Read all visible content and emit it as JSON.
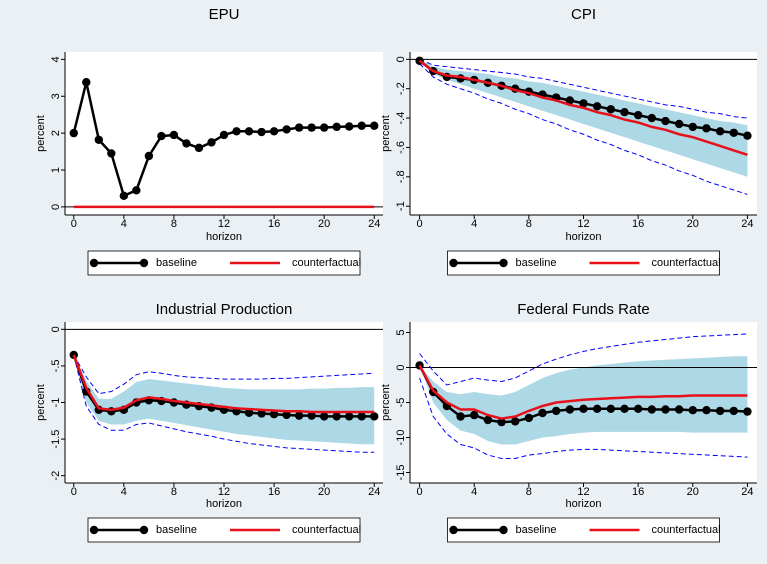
{
  "chart_data": [
    {
      "type": "line",
      "title": "EPU",
      "xlabel": "horizon",
      "ylabel": "percent",
      "x": [
        0,
        1,
        2,
        3,
        4,
        5,
        6,
        7,
        8,
        9,
        10,
        11,
        12,
        13,
        14,
        15,
        16,
        17,
        18,
        19,
        20,
        21,
        22,
        23,
        24
      ],
      "xlim": [
        -0.7,
        24.7
      ],
      "xticks": [
        0,
        4,
        8,
        12,
        16,
        20,
        24
      ],
      "ylim": [
        -0.22,
        4.2
      ],
      "yticks": [
        0,
        1,
        2,
        3,
        4
      ],
      "zero_line": true,
      "ci": {
        "color": "#0000ff",
        "lower": [
          0,
          0,
          0,
          0,
          0,
          0,
          0,
          0,
          0,
          0,
          0,
          0,
          0,
          0,
          0,
          0,
          0,
          0,
          0,
          0,
          0,
          0,
          0,
          0,
          0
        ],
        "upper": [
          0,
          0,
          0,
          0,
          0,
          0,
          0,
          0,
          0,
          0,
          0,
          0,
          0,
          0,
          0,
          0,
          0,
          0,
          0,
          0,
          0,
          0,
          0,
          0,
          0
        ]
      },
      "series": [
        {
          "name": "baseline",
          "color": "#000000",
          "marker": true,
          "values": [
            2.0,
            3.38,
            1.82,
            1.45,
            0.3,
            0.45,
            1.38,
            1.92,
            1.95,
            1.72,
            1.6,
            1.75,
            1.95,
            2.05,
            2.05,
            2.03,
            2.05,
            2.1,
            2.15,
            2.15,
            2.15,
            2.17,
            2.18,
            2.2,
            2.2
          ]
        },
        {
          "name": "counterfactual",
          "color": "#e8101a",
          "marker": false,
          "values": [
            0,
            0,
            0,
            0,
            0,
            0,
            0,
            0,
            0,
            0,
            0,
            0,
            0,
            0,
            0,
            0,
            0,
            0,
            0,
            0,
            0,
            0,
            0,
            0,
            0
          ]
        }
      ]
    },
    {
      "type": "line",
      "title": "CPI",
      "xlabel": "horizon",
      "ylabel": "percent",
      "x": [
        0,
        1,
        2,
        3,
        4,
        5,
        6,
        7,
        8,
        9,
        10,
        11,
        12,
        13,
        14,
        15,
        16,
        17,
        18,
        19,
        20,
        21,
        22,
        23,
        24
      ],
      "xlim": [
        -0.7,
        24.7
      ],
      "xticks": [
        0,
        4,
        8,
        12,
        16,
        20,
        24
      ],
      "ylim": [
        -1.06,
        0.05
      ],
      "yticks": [
        {
          "value": -1,
          "label": "-1"
        },
        {
          "value": -0.8,
          "label": "-.8"
        },
        {
          "value": -0.6,
          "label": "-.6"
        },
        {
          "value": -0.4,
          "label": "-.4"
        },
        {
          "value": -0.2,
          "label": "-.2"
        },
        0
      ],
      "zero_line": true,
      "band": {
        "color": "#add8e6",
        "lower": [
          -0.02,
          -0.1,
          -0.14,
          -0.17,
          -0.2,
          -0.23,
          -0.26,
          -0.29,
          -0.32,
          -0.35,
          -0.38,
          -0.41,
          -0.44,
          -0.47,
          -0.5,
          -0.53,
          -0.56,
          -0.59,
          -0.62,
          -0.65,
          -0.68,
          -0.71,
          -0.74,
          -0.77,
          -0.8
        ],
        "upper": [
          0,
          -0.05,
          -0.07,
          -0.08,
          -0.09,
          -0.1,
          -0.12,
          -0.13,
          -0.15,
          -0.16,
          -0.18,
          -0.2,
          -0.22,
          -0.24,
          -0.26,
          -0.28,
          -0.3,
          -0.32,
          -0.34,
          -0.36,
          -0.38,
          -0.4,
          -0.42,
          -0.43,
          -0.45
        ]
      },
      "ci": {
        "color": "#0000ff",
        "lower": [
          -0.03,
          -0.12,
          -0.17,
          -0.2,
          -0.23,
          -0.27,
          -0.3,
          -0.34,
          -0.37,
          -0.41,
          -0.44,
          -0.48,
          -0.51,
          -0.55,
          -0.58,
          -0.62,
          -0.65,
          -0.69,
          -0.72,
          -0.76,
          -0.79,
          -0.83,
          -0.86,
          -0.89,
          -0.92
        ],
        "upper": [
          0,
          -0.04,
          -0.05,
          -0.06,
          -0.07,
          -0.08,
          -0.09,
          -0.1,
          -0.12,
          -0.13,
          -0.15,
          -0.17,
          -0.19,
          -0.21,
          -0.23,
          -0.25,
          -0.27,
          -0.29,
          -0.31,
          -0.32,
          -0.34,
          -0.36,
          -0.37,
          -0.39,
          -0.4
        ]
      },
      "series": [
        {
          "name": "baseline",
          "color": "#000000",
          "marker": true,
          "values": [
            -0.01,
            -0.08,
            -0.12,
            -0.13,
            -0.14,
            -0.16,
            -0.18,
            -0.2,
            -0.22,
            -0.24,
            -0.26,
            -0.28,
            -0.3,
            -0.32,
            -0.34,
            -0.36,
            -0.38,
            -0.4,
            -0.42,
            -0.44,
            -0.46,
            -0.47,
            -0.49,
            -0.5,
            -0.52
          ]
        },
        {
          "name": "counterfactual",
          "color": "#e8101a",
          "marker": false,
          "values": [
            -0.01,
            -0.08,
            -0.11,
            -0.12,
            -0.14,
            -0.16,
            -0.18,
            -0.21,
            -0.23,
            -0.26,
            -0.28,
            -0.31,
            -0.33,
            -0.36,
            -0.38,
            -0.41,
            -0.43,
            -0.46,
            -0.48,
            -0.51,
            -0.53,
            -0.56,
            -0.59,
            -0.62,
            -0.65
          ]
        }
      ]
    },
    {
      "type": "line",
      "title": "Industrial Production",
      "xlabel": "horizon",
      "ylabel": "percent",
      "x": [
        0,
        1,
        2,
        3,
        4,
        5,
        6,
        7,
        8,
        9,
        10,
        11,
        12,
        13,
        14,
        15,
        16,
        17,
        18,
        19,
        20,
        21,
        22,
        23,
        24
      ],
      "xlim": [
        -0.7,
        24.7
      ],
      "xticks": [
        0,
        4,
        8,
        12,
        16,
        20,
        24
      ],
      "ylim": [
        -2.1,
        0.1
      ],
      "yticks": [
        -2,
        {
          "value": -1.5,
          "label": "-1.5"
        },
        -1,
        {
          "value": -0.5,
          "label": "-.5"
        },
        0
      ],
      "zero_line": true,
      "band": {
        "color": "#add8e6",
        "lower": [
          -0.35,
          -1.0,
          -1.25,
          -1.3,
          -1.3,
          -1.25,
          -1.22,
          -1.25,
          -1.28,
          -1.31,
          -1.34,
          -1.37,
          -1.4,
          -1.43,
          -1.45,
          -1.47,
          -1.49,
          -1.51,
          -1.52,
          -1.53,
          -1.54,
          -1.55,
          -1.56,
          -1.57,
          -1.57
        ],
        "upper": [
          -0.35,
          -0.7,
          -0.95,
          -0.95,
          -0.85,
          -0.72,
          -0.68,
          -0.7,
          -0.72,
          -0.74,
          -0.76,
          -0.78,
          -0.8,
          -0.81,
          -0.82,
          -0.82,
          -0.82,
          -0.82,
          -0.82,
          -0.81,
          -0.81,
          -0.8,
          -0.8,
          -0.79,
          -0.79
        ]
      },
      "ci": {
        "color": "#0000ff",
        "lower": [
          -0.35,
          -1.05,
          -1.3,
          -1.38,
          -1.38,
          -1.3,
          -1.28,
          -1.32,
          -1.36,
          -1.4,
          -1.43,
          -1.46,
          -1.5,
          -1.53,
          -1.56,
          -1.58,
          -1.6,
          -1.62,
          -1.63,
          -1.64,
          -1.65,
          -1.66,
          -1.67,
          -1.68,
          -1.68
        ],
        "upper": [
          -0.35,
          -0.65,
          -0.88,
          -0.85,
          -0.75,
          -0.62,
          -0.58,
          -0.6,
          -0.63,
          -0.65,
          -0.66,
          -0.67,
          -0.68,
          -0.68,
          -0.68,
          -0.68,
          -0.67,
          -0.67,
          -0.66,
          -0.65,
          -0.64,
          -0.63,
          -0.62,
          -0.61,
          -0.6
        ]
      },
      "series": [
        {
          "name": "baseline",
          "color": "#000000",
          "marker": true,
          "values": [
            -0.35,
            -0.85,
            -1.1,
            -1.12,
            -1.1,
            -1.0,
            -0.97,
            -0.98,
            -1.0,
            -1.03,
            -1.05,
            -1.07,
            -1.1,
            -1.12,
            -1.14,
            -1.15,
            -1.16,
            -1.17,
            -1.18,
            -1.18,
            -1.19,
            -1.19,
            -1.19,
            -1.19,
            -1.19
          ]
        },
        {
          "name": "counterfactual",
          "color": "#e8101a",
          "marker": false,
          "values": [
            -0.35,
            -0.8,
            -1.08,
            -1.1,
            -1.07,
            -0.97,
            -0.93,
            -0.95,
            -0.98,
            -1.0,
            -1.02,
            -1.04,
            -1.06,
            -1.08,
            -1.09,
            -1.1,
            -1.11,
            -1.12,
            -1.12,
            -1.13,
            -1.13,
            -1.13,
            -1.13,
            -1.13,
            -1.13
          ]
        }
      ]
    },
    {
      "type": "line",
      "title": "Federal Funds Rate",
      "xlabel": "horizon",
      "ylabel": "percent",
      "x": [
        0,
        1,
        2,
        3,
        4,
        5,
        6,
        7,
        8,
        9,
        10,
        11,
        12,
        13,
        14,
        15,
        16,
        17,
        18,
        19,
        20,
        21,
        22,
        23,
        24
      ],
      "xlim": [
        -0.7,
        24.7
      ],
      "xticks": [
        0,
        4,
        8,
        12,
        16,
        20,
        24
      ],
      "ylim": [
        -16.5,
        6.5
      ],
      "yticks": [
        -15,
        -10,
        -5,
        0,
        5
      ],
      "zero_line": true,
      "band": {
        "color": "#add8e6",
        "lower": [
          0.3,
          -5,
          -7.5,
          -9,
          -9.5,
          -10.5,
          -11,
          -11,
          -10.5,
          -10,
          -9.8,
          -9.5,
          -9.3,
          -9.2,
          -9.2,
          -9.2,
          -9.2,
          -9.2,
          -9.2,
          -9.2,
          -9.3,
          -9.3,
          -9.3,
          -9.3,
          -9.3
        ],
        "upper": [
          0.3,
          -2,
          -3.5,
          -3.8,
          -3.5,
          -3.8,
          -4,
          -3.5,
          -2.5,
          -1.5,
          -0.8,
          -0.3,
          0,
          0.3,
          0.5,
          0.7,
          0.9,
          1,
          1.1,
          1.2,
          1.3,
          1.4,
          1.5,
          1.6,
          1.6
        ]
      },
      "ci": {
        "color": "#0000ff",
        "lower": [
          -1.5,
          -7,
          -9.5,
          -11,
          -11.5,
          -12.5,
          -13,
          -13,
          -12.5,
          -12.3,
          -12,
          -11.8,
          -11.7,
          -11.7,
          -11.8,
          -11.9,
          -12,
          -12.1,
          -12.2,
          -12.3,
          -12.4,
          -12.5,
          -12.6,
          -12.7,
          -12.8
        ],
        "upper": [
          2,
          -0.5,
          -2.5,
          -2,
          -1.5,
          -1.8,
          -2,
          -1.5,
          -0.5,
          0.5,
          1.2,
          1.8,
          2.3,
          2.7,
          3,
          3.3,
          3.6,
          3.8,
          4,
          4.2,
          4.4,
          4.5,
          4.6,
          4.7,
          4.8
        ]
      },
      "series": [
        {
          "name": "baseline",
          "color": "#000000",
          "marker": true,
          "values": [
            0.3,
            -3.5,
            -5.5,
            -7,
            -6.8,
            -7.5,
            -7.8,
            -7.7,
            -7.2,
            -6.5,
            -6.2,
            -6,
            -5.9,
            -5.9,
            -5.9,
            -5.9,
            -5.9,
            -6,
            -6,
            -6,
            -6.1,
            -6.1,
            -6.2,
            -6.2,
            -6.3
          ]
        },
        {
          "name": "counterfactual",
          "color": "#e8101a",
          "marker": false,
          "values": [
            0.3,
            -3.3,
            -5,
            -6,
            -6,
            -6.8,
            -7.3,
            -7,
            -6.2,
            -5.5,
            -5,
            -4.8,
            -4.6,
            -4.5,
            -4.4,
            -4.3,
            -4.2,
            -4.2,
            -4.1,
            -4.1,
            -4,
            -4,
            -4,
            -4,
            -4
          ]
        }
      ]
    }
  ]
}
